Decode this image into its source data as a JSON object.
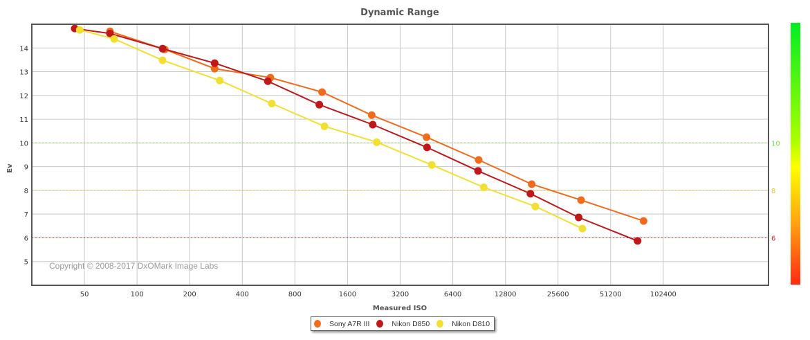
{
  "chart_data": {
    "type": "line",
    "title": "Dynamic Range",
    "xlabel": "Measured ISO",
    "ylabel": "Ev",
    "x_scale": "log2",
    "xlim": [
      25,
      409600
    ],
    "ylim": [
      4,
      15
    ],
    "x_ticks": [
      50,
      100,
      200,
      400,
      800,
      1600,
      3200,
      6400,
      12800,
      25600,
      51200,
      102400
    ],
    "x_tick_labels": [
      "50",
      "100",
      "200",
      "400",
      "800",
      "1600",
      "3200",
      "6400",
      "12800",
      "25600",
      "51200",
      "102400"
    ],
    "y_ticks": [
      5,
      6,
      7,
      8,
      9,
      10,
      11,
      12,
      13,
      14
    ],
    "y_tick_labels": [
      "5",
      "6",
      "7",
      "8",
      "9",
      "10",
      "11",
      "12",
      "13",
      "14"
    ],
    "grid": true,
    "reference_lines": [
      {
        "value": 10,
        "label": "10",
        "color": "#77dd33"
      },
      {
        "value": 8,
        "label": "8",
        "color": "#f0c020"
      },
      {
        "value": 6,
        "label": "6",
        "color": "#cc2222"
      }
    ],
    "color_scale": {
      "colors": [
        "#00ee22",
        "#ffff00",
        "#ff2a10"
      ]
    },
    "legend_position": "bottom-center",
    "annotation": "Copyright © 2008-2017 DxOMark Image Labs",
    "series": [
      {
        "name": "Sony A7R III",
        "color": "#f26b1d",
        "x": [
          70,
          144,
          278,
          579,
          1144,
          2200,
          4530,
          9000,
          18100,
          34700,
          79000
        ],
        "y": [
          14.7,
          13.94,
          13.13,
          12.75,
          12.14,
          11.17,
          10.24,
          9.28,
          8.26,
          7.59,
          6.71
        ]
      },
      {
        "name": "Nikon D850",
        "color": "#c0181a",
        "x": [
          44,
          70,
          140,
          278,
          560,
          1103,
          2230,
          4560,
          8930,
          17800,
          33600,
          73000
        ],
        "y": [
          14.82,
          14.61,
          13.97,
          13.36,
          12.6,
          11.61,
          10.77,
          9.81,
          8.82,
          7.86,
          6.86,
          5.87
        ]
      },
      {
        "name": "Nikon D810",
        "color": "#f2e030",
        "x": [
          47,
          74,
          140,
          297,
          590,
          1180,
          2350,
          4850,
          9630,
          19000,
          35300
        ],
        "y": [
          14.76,
          14.38,
          13.48,
          12.63,
          11.66,
          10.7,
          10.03,
          9.07,
          8.13,
          7.32,
          6.39
        ]
      }
    ]
  }
}
